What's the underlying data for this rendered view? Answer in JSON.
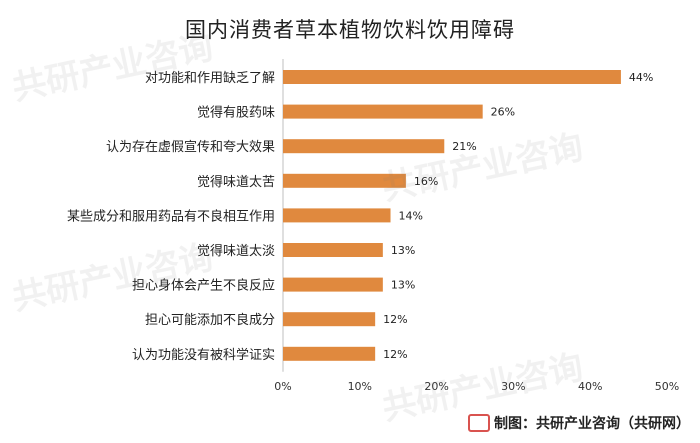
{
  "chart_data": {
    "type": "bar",
    "orientation": "horizontal",
    "title": "国内消费者草本植物饮料饮用障碍",
    "categories": [
      "对功能和作用缺乏了解",
      "觉得有股药味",
      "认为存在虚假宣传和夸大效果",
      "觉得味道太苦",
      "某些成分和服用药品有不良相互作用",
      "觉得味道太淡",
      "担心身体会产生不良反应",
      "担心可能添加不良成分",
      "认为功能没有被科学证实"
    ],
    "values": [
      44,
      26,
      21,
      16,
      14,
      13,
      13,
      12,
      12
    ],
    "data_labels": [
      "44%",
      "26%",
      "21%",
      "16%",
      "14%",
      "13%",
      "13%",
      "12%",
      "12%"
    ],
    "xlim": [
      0,
      50
    ],
    "x_ticks": [
      "0%",
      "10%",
      "20%",
      "30%",
      "40%",
      "50%"
    ],
    "grid": false,
    "bar_color": "#E0893E"
  },
  "watermark": {
    "text": "共研产业咨询"
  },
  "credit": {
    "text": "制图：共研产业咨询（共研网）"
  }
}
